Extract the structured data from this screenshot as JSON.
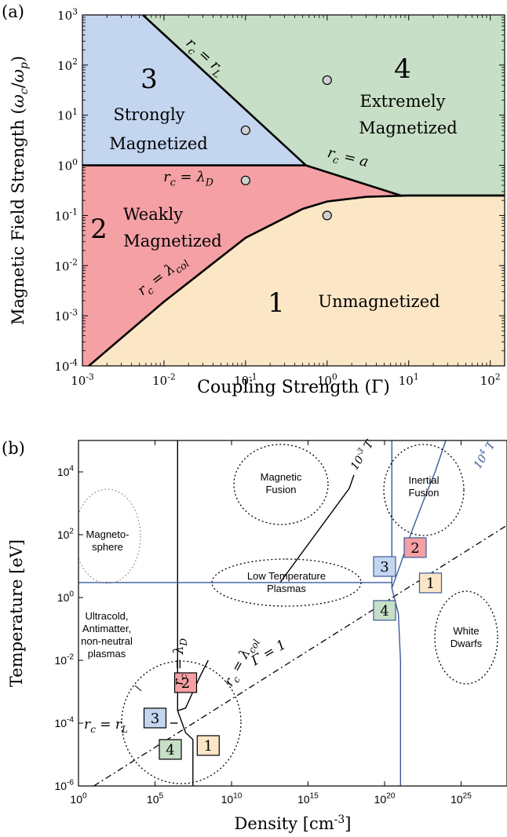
{
  "chart_data": [
    {
      "panel_label": "(a)",
      "type": "area",
      "xlabel": "Coupling Strength (Γ)",
      "ylabel": "Magnetic Field Strength (ω_c/ω_p)",
      "x_scale": "log",
      "y_scale": "log",
      "xlim": [
        0.001,
        150
      ],
      "ylim": [
        0.0001,
        1000
      ],
      "x_ticks": [
        0.001,
        0.01,
        0.1,
        1,
        10,
        100
      ],
      "x_tick_labels": [
        [
          "10",
          "-3"
        ],
        [
          "10",
          "-2"
        ],
        [
          "10",
          "-1"
        ],
        [
          "10",
          "0"
        ],
        [
          "10",
          "1"
        ],
        [
          "10",
          "2"
        ]
      ],
      "y_ticks": [
        0.0001,
        0.001,
        0.01,
        0.1,
        1,
        10,
        100,
        1000
      ],
      "y_tick_labels": [
        [
          "10",
          "-4"
        ],
        [
          "10",
          "-3"
        ],
        [
          "10",
          "-2"
        ],
        [
          "10",
          "-1"
        ],
        [
          "10",
          "0"
        ],
        [
          "10",
          "1"
        ],
        [
          "10",
          "2"
        ],
        [
          "10",
          "3"
        ]
      ],
      "colors": {
        "region_1": "#fbe6c6",
        "region_2": "#f4a0a4",
        "region_3": "#c3d5ef",
        "region_4": "#c7dfc6",
        "boundary": "#000000",
        "point_fill": "#d0d0d0"
      },
      "regions": [
        {
          "number": "1",
          "label_lines": [
            "Unmagnetized"
          ]
        },
        {
          "number": "2",
          "label_lines": [
            "Weakly",
            "Magnetized"
          ]
        },
        {
          "number": "3",
          "label_lines": [
            "Strongly",
            "Magnetized"
          ]
        },
        {
          "number": "4",
          "label_lines": [
            "Extremely",
            "Magnetized"
          ]
        }
      ],
      "boundaries": [
        {
          "label": "r_c = λ_D",
          "points": [
            [
              0.001,
              1
            ],
            [
              0.55,
              1
            ]
          ]
        },
        {
          "label": "r_c = r_L",
          "points": [
            [
              0.0055,
              1000
            ],
            [
              0.55,
              1
            ]
          ]
        },
        {
          "label": "r_c = a",
          "points": [
            [
              0.55,
              1
            ],
            [
              8,
              0.25
            ],
            [
              150,
              0.25
            ]
          ]
        },
        {
          "label": "r_c = λ_col",
          "points": [
            [
              0.0012,
              0.0001
            ],
            [
              0.01,
              0.0019
            ],
            [
              0.1,
              0.036
            ],
            [
              0.5,
              0.135
            ],
            [
              1,
              0.19
            ],
            [
              3,
              0.235
            ],
            [
              10,
              0.25
            ],
            [
              150,
              0.25
            ]
          ]
        }
      ],
      "points": [
        [
          0.1,
          5
        ],
        [
          1,
          50
        ],
        [
          0.1,
          0.5
        ],
        [
          1,
          0.1
        ]
      ]
    },
    {
      "panel_label": "(b)",
      "type": "scatter",
      "xlabel": "Density [cm^-3]",
      "ylabel": "Temperature [eV]",
      "x_scale": "log",
      "y_scale": "log",
      "xlim": [
        1,
        1e+28
      ],
      "ylim": [
        1e-06,
        100000.0
      ],
      "x_ticks": [
        1,
        100000.0,
        10000000000.0,
        1000000000000000.0,
        1e+20,
        1e+25
      ],
      "x_tick_labels": [
        [
          "10",
          "0"
        ],
        [
          "10",
          "5"
        ],
        [
          "10",
          "10"
        ],
        [
          "10",
          "15"
        ],
        [
          "10",
          "20"
        ],
        [
          "10",
          "25"
        ]
      ],
      "y_ticks": [
        1e-06,
        0.0001,
        0.01,
        1,
        100,
        10000
      ],
      "y_tick_labels": [
        [
          "10",
          "-6"
        ],
        [
          "10",
          "-4"
        ],
        [
          "10",
          "-2"
        ],
        [
          "10",
          "0"
        ],
        [
          "10",
          "2"
        ],
        [
          "10",
          "4"
        ]
      ],
      "colors": {
        "line_low_field": "#000000",
        "line_high_field": "#3b5b9a",
        "gamma_line": "#000000",
        "box_1": "#fbe6c6",
        "box_2": "#f4a0a4",
        "box_3": "#c3d5ef",
        "box_4": "#c7dfc6"
      },
      "line_labels": {
        "low_field": "10^-3 T",
        "high_field": "10^4 T",
        "gamma": "Γ = 1",
        "lambda_d": "r_c = λ_D",
        "lambda_col": "r_c = λ_col",
        "r_l": "r_c = r_L"
      },
      "regimes": [
        {
          "lines": [
            "Magneto-",
            "sphere"
          ]
        },
        {
          "lines": [
            "Magnetic",
            "Fusion"
          ]
        },
        {
          "lines": [
            "Inertial",
            "Fusion"
          ]
        },
        {
          "lines": [
            "Low Temperature",
            "Plasmas"
          ]
        },
        {
          "lines": [
            "White",
            "Dwarfs"
          ]
        },
        {
          "lines": [
            "Ultracold,",
            "Antimatter,",
            "non-neutral",
            "plasmas"
          ]
        }
      ],
      "region_boxes": [
        {
          "field": "10^-3 T",
          "number": "1",
          "position": [
            300000000.0,
            2e-05
          ]
        },
        {
          "field": "10^-3 T",
          "number": "2",
          "position": [
            10000000.0,
            0.002
          ]
        },
        {
          "field": "10^-3 T",
          "number": "3",
          "position": [
            100000.0,
            0.00015
          ]
        },
        {
          "field": "10^-3 T",
          "number": "4",
          "position": [
            1000000.0,
            1.5e-05
          ]
        },
        {
          "field": "10^4 T",
          "number": "1",
          "position": [
            1e+23,
            3
          ]
        },
        {
          "field": "10^4 T",
          "number": "2",
          "position": [
            1e+22,
            40
          ]
        },
        {
          "field": "10^4 T",
          "number": "3",
          "position": [
            1e+20,
            10
          ]
        },
        {
          "field": "10^4 T",
          "number": "4",
          "position": [
            1e+20,
            0.4
          ]
        }
      ],
      "curves": {
        "low_field_lambda_d": [
          [
            3000000.0,
            100000.0
          ],
          [
            3000000.0,
            0.00025
          ]
        ],
        "low_field_r_l": [
          [
            1000000.0,
            0.0001
          ],
          [
            3000000.0,
            0.0001
          ]
        ],
        "low_field_lambda_col": [
          [
            3000000.0,
            0.00025
          ],
          [
            10000000.0,
            0.0003
          ],
          [
            30000000.0,
            0.001
          ],
          [
            100000000.0,
            0.0035
          ],
          [
            300000000.0,
            0.01
          ]
        ],
        "low_field_a": [
          [
            3000000.0,
            0.00025
          ],
          [
            10000000.0,
            5e-05
          ],
          [
            30000000.0,
            3e-05
          ],
          [
            30000000.0,
            1e-06
          ]
        ],
        "low_field_label_line": [
          [
            15000000000000.0,
            3
          ],
          [
            5e+17,
            3000
          ],
          [
            1e+18,
            8000
          ]
        ],
        "high_field_lambda_d": [
          [
            3e+20,
            100000.0
          ],
          [
            3e+20,
            2
          ]
        ],
        "high_field_r_l": [
          [
            1,
            3
          ],
          [
            3e+20,
            3
          ]
        ],
        "high_field_lambda_col": [
          [
            3e+20,
            2
          ],
          [
            1e+21,
            10
          ],
          [
            5e+21,
            100
          ],
          [
            3e+22,
            1000
          ],
          [
            2e+23,
            10000
          ],
          [
            1e+24,
            100000.0
          ]
        ],
        "high_field_a": [
          [
            3e+20,
            2
          ],
          [
            8e+20,
            0.3
          ],
          [
            1.1e+21,
            0.01
          ],
          [
            1.1e+21,
            1e-06
          ]
        ],
        "gamma_1": [
          [
            10,
            1e-06
          ],
          [
            1e+28,
            200
          ]
        ]
      }
    }
  ]
}
